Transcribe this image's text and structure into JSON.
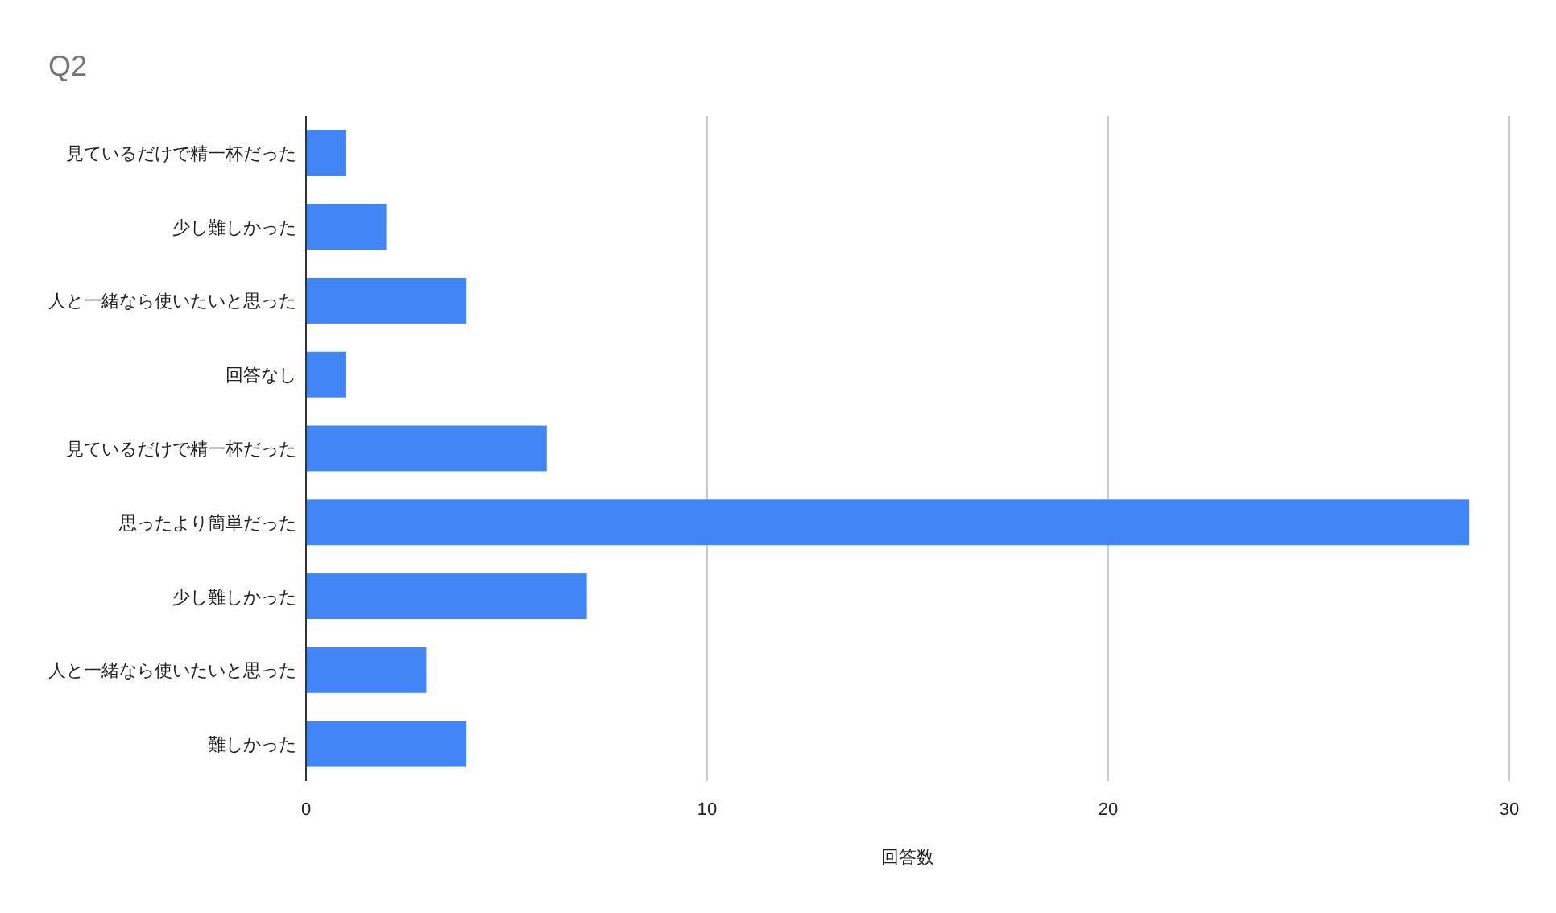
{
  "chart_data": {
    "type": "bar",
    "orientation": "horizontal",
    "title": "Q2",
    "xlabel": "回答数",
    "categories": [
      "見ているだけで精一杯だった",
      "少し難しかった",
      "人と一緒なら使いたいと思った",
      "回答なし",
      "見ているだけで精一杯だった",
      "思ったより簡単だった",
      "少し難しかった",
      "人と一緒なら使いたいと思った",
      "難しかった"
    ],
    "values": [
      1,
      2,
      4,
      1,
      6,
      29,
      7,
      3,
      4
    ],
    "color": "#4285f4",
    "xlim": [
      0,
      30
    ],
    "xticks": [
      0,
      10,
      20,
      30
    ],
    "grid": "x"
  }
}
